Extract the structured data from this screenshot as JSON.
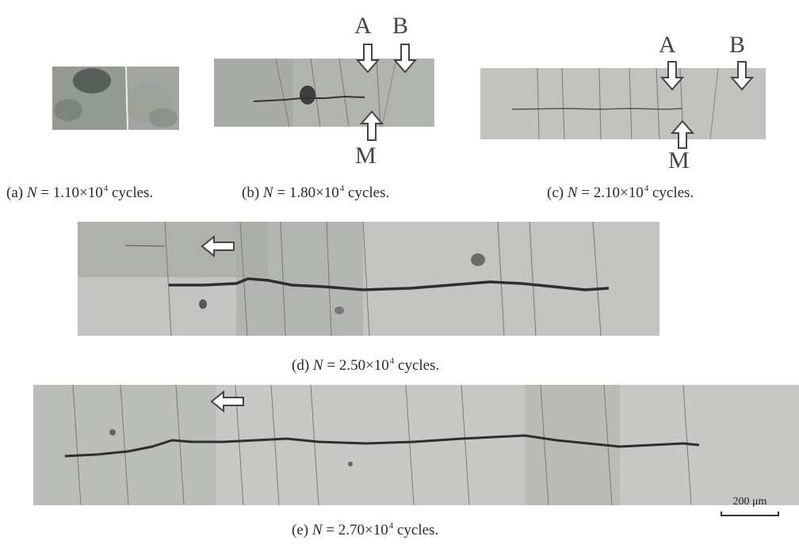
{
  "panels": [
    {
      "id": "a",
      "label": "(a)",
      "cycles_base": "1.10",
      "cycles_exp": "4",
      "unit": "cycles."
    },
    {
      "id": "b",
      "label": "(b)",
      "cycles_base": "1.80",
      "cycles_exp": "4",
      "unit": "cycles."
    },
    {
      "id": "c",
      "label": "(c)",
      "cycles_base": "2.10",
      "cycles_exp": "4",
      "unit": "cycles."
    },
    {
      "id": "d",
      "label": "(d)",
      "cycles_base": "2.50",
      "cycles_exp": "4",
      "unit": "cycles."
    },
    {
      "id": "e",
      "label": "(e)",
      "cycles_base": "2.70",
      "cycles_exp": "4",
      "unit": "cycles."
    }
  ],
  "caption_var": "N",
  "caption_eq": " = ",
  "caption_times": "×10",
  "markers": {
    "a": "A",
    "b": "B",
    "m": "M"
  },
  "scale_bar": "200 μm",
  "colors": {
    "micrograph_bg": "#bdbdbb",
    "crack": "#2e2e2e",
    "slip_line": "#7a7a78"
  }
}
